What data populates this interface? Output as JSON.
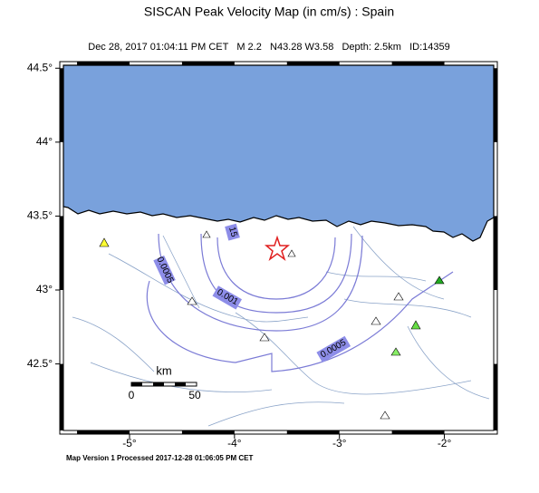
{
  "map": {
    "title": "SISCAN Peak Velocity Map (in cm/s) : Spain",
    "subtitle": "Dec 28, 2017 01:04:11 PM CET   M 2.2   N43.28 W3.58   Depth: 2.5km   ID:14359",
    "xlim": [
      -5.63,
      -1.53
    ],
    "ylim": [
      42.05,
      44.52
    ],
    "xticks": [
      {
        "value": -5,
        "label": "-5°"
      },
      {
        "value": -4,
        "label": "-4°"
      },
      {
        "value": -3,
        "label": "-3°"
      },
      {
        "value": -2,
        "label": "-2°"
      }
    ],
    "yticks": [
      {
        "value": 44.5,
        "label": "44.5°"
      },
      {
        "value": 44,
        "label": "44°"
      },
      {
        "value": 43.5,
        "label": "43.5°"
      },
      {
        "value": 43,
        "label": "43°"
      },
      {
        "value": 42.5,
        "label": "42.5°"
      }
    ],
    "contour_labels": [
      "0.0005",
      "0.001",
      "15",
      "0.0005"
    ],
    "scale_bar": {
      "unit": "km",
      "labels": [
        "0",
        "50"
      ]
    },
    "footer": "Map Version 1 Processed 2017-12-28 01:06:05 PM CET"
  }
}
